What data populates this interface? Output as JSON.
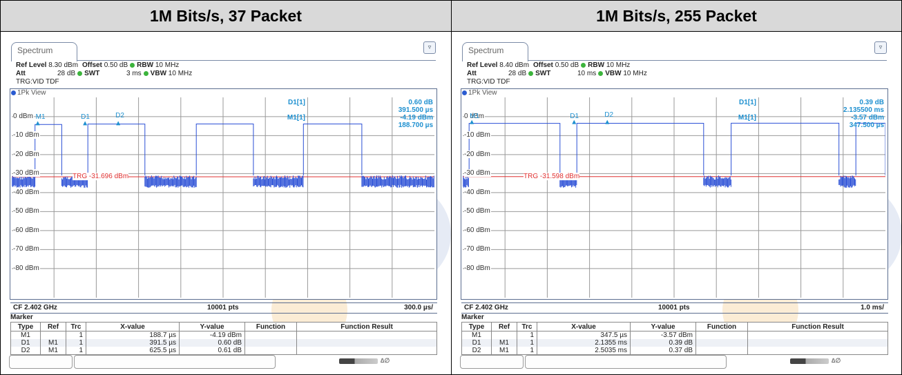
{
  "headers": {
    "left": "1M Bits/s, 37 Packet",
    "right": "1M Bits/s, 255 Packet"
  },
  "panels": [
    {
      "tab_label": "Spectrum",
      "menu_icon": "menu-icon",
      "ref_level_label": "Ref Level",
      "ref_level": "8.30 dBm",
      "offset_label": "Offset",
      "offset": "0.50 dB",
      "rbw_label": "RBW",
      "rbw": "10 MHz",
      "att_label": "Att",
      "att": "28 dB",
      "swt_label": "SWT",
      "swt": "3 ms",
      "vbw_label": "VBW",
      "vbw": "10 MHz",
      "trg_mode": "TRG:VID TDF",
      "view_label": "1Pk View",
      "y_labels": [
        "0 dBm",
        "-10 dBm",
        "-20 dBm",
        "-30 dBm",
        "-40 dBm",
        "-50 dBm",
        "-60 dBm",
        "-70 dBm",
        "-80 dBm"
      ],
      "trigger_label": "TRG -31.696 dBm",
      "trigger_level_dbm": -31.696,
      "marker_tags": {
        "m1": "M1",
        "d1": "D1",
        "d2": "D2"
      },
      "readout": {
        "d1_label": "D1[1]",
        "d1_value": "0.60 dB",
        "d1_time": "391.500 µs",
        "m1_label": "M1[1]",
        "m1_value": "-4.19 dBm",
        "m1_time": "188.700 µs"
      },
      "cf": "CF 2.402 GHz",
      "pts": "10001 pts",
      "span": "300.0 µs/",
      "marker_title": "Marker",
      "table_headers": [
        "Type",
        "Ref",
        "Trc",
        "X-value",
        "Y-value",
        "Function",
        "Function Result"
      ],
      "rows": [
        {
          "type": "M1",
          "ref": "",
          "trc": "1",
          "x": "188.7 µs",
          "y": "-4.19 dBm",
          "func": "",
          "result": ""
        },
        {
          "type": "D1",
          "ref": "M1",
          "trc": "1",
          "x": "391.5 µs",
          "y": "0.60 dB",
          "func": "",
          "result": ""
        },
        {
          "type": "D2",
          "ref": "M1",
          "trc": "1",
          "x": "625.5 µs",
          "y": "0.61 dB",
          "func": "",
          "result": ""
        }
      ],
      "x_per_div_us": 300,
      "pulses_us": [
        [
          165,
          355
        ],
        [
          540,
          945
        ],
        [
          1310,
          1715
        ],
        [
          2070,
          2485
        ]
      ],
      "level_dbm": [
        -4.19,
        -3.6,
        -3.58
      ]
    },
    {
      "tab_label": "Spectrum",
      "menu_icon": "menu-icon",
      "ref_level_label": "Ref Level",
      "ref_level": "8.40 dBm",
      "offset_label": "Offset",
      "offset": "0.50 dB",
      "rbw_label": "RBW",
      "rbw": "10 MHz",
      "att_label": "Att",
      "att": "28 dB",
      "swt_label": "SWT",
      "swt": "10 ms",
      "vbw_label": "VBW",
      "vbw": "10 MHz",
      "trg_mode": "TRG:VID TDF",
      "view_label": "1Pk View",
      "y_labels": [
        "0 dBm",
        "-10 dBm",
        "-20 dBm",
        "-30 dBm",
        "-40 dBm",
        "-50 dBm",
        "-60 dBm",
        "-70 dBm",
        "-80 dBm"
      ],
      "trigger_label": "TRG -31.598 dBm",
      "trigger_level_dbm": -31.598,
      "marker_tags": {
        "m1": "M1",
        "d1": "D1",
        "d2": "D2"
      },
      "readout": {
        "d1_label": "D1[1]",
        "d1_value": "0.39 dB",
        "d1_time": "2.135500 ms",
        "m1_label": "M1[1]",
        "m1_value": "-3.57 dBm",
        "m1_time": "347.500 µs"
      },
      "cf": "CF 2.402 GHz",
      "pts": "10001 pts",
      "span": "1.0 ms/",
      "marker_title": "Marker",
      "table_headers": [
        "Type",
        "Ref",
        "Trc",
        "X-value",
        "Y-value",
        "Function",
        "Function Result"
      ],
      "rows": [
        {
          "type": "M1",
          "ref": "",
          "trc": "1",
          "x": "347.5 µs",
          "y": "-3.57 dBm",
          "func": "",
          "result": ""
        },
        {
          "type": "D1",
          "ref": "M1",
          "trc": "1",
          "x": "2.1355 ms",
          "y": "0.39 dB",
          "func": "",
          "result": ""
        },
        {
          "type": "D2",
          "ref": "M1",
          "trc": "1",
          "x": "2.5035 ms",
          "y": "0.37 dB",
          "func": "",
          "result": ""
        }
      ],
      "x_per_div_us": 1000,
      "pulses_us": [
        [
          150,
          2300
        ],
        [
          2700,
          5700
        ],
        [
          6350,
          8900
        ],
        [
          9300,
          10000
        ]
      ],
      "level_dbm": [
        -3.57,
        -3.2,
        -3.18
      ]
    }
  ]
}
